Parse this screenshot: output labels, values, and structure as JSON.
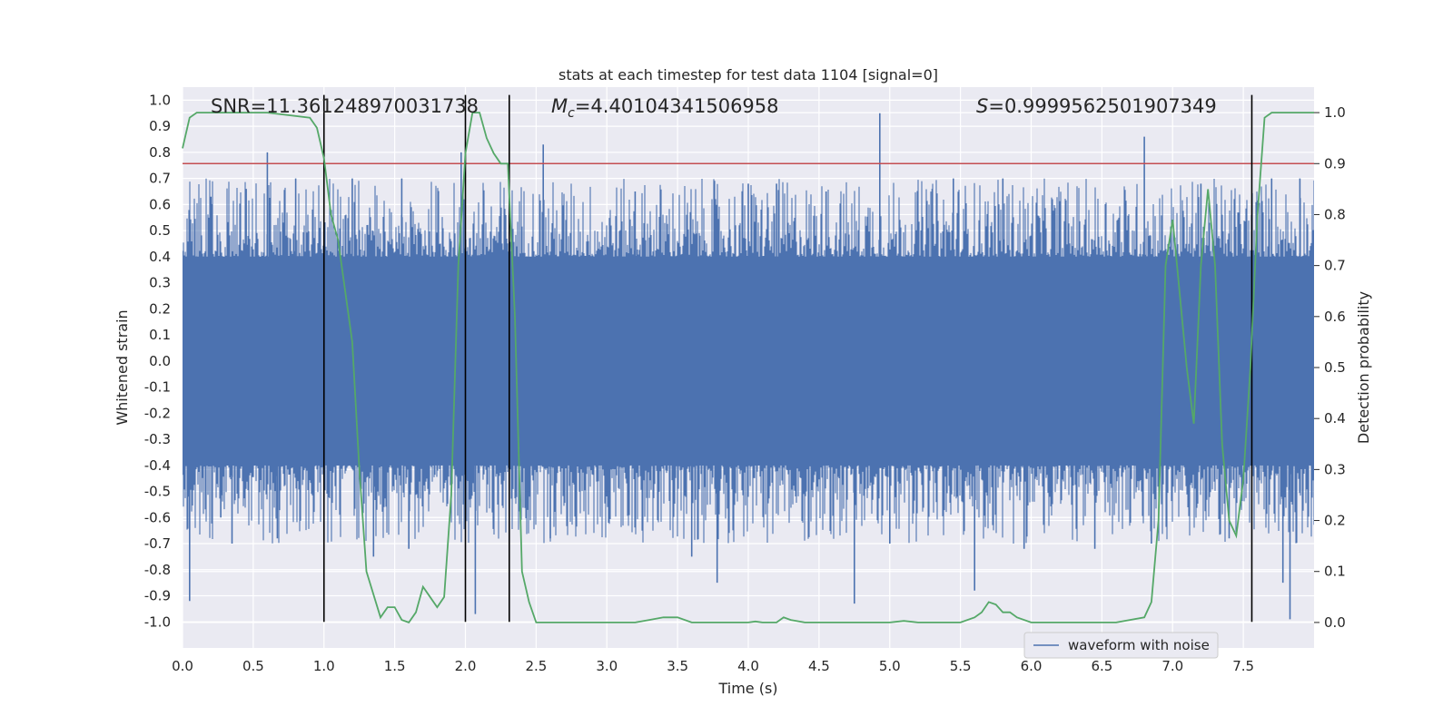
{
  "chart_data": {
    "type": "line",
    "title": "stats at each timestep for test data 1104 [signal=0]",
    "xlabel": "Time (s)",
    "ylabel_left": "Whitened strain",
    "ylabel_right": "Detection probability",
    "xlim": [
      0,
      8
    ],
    "ylim_left": [
      -1.1,
      1.05
    ],
    "ylim_right": [
      -0.05,
      1.05
    ],
    "grid": true,
    "background_color": "#eaeaf2",
    "x_ticks": [
      "0.0",
      "0.5",
      "1.0",
      "1.5",
      "2.0",
      "2.5",
      "3.0",
      "3.5",
      "4.0",
      "4.5",
      "5.0",
      "5.5",
      "6.0",
      "6.5",
      "7.0",
      "7.5"
    ],
    "y_left_ticks": [
      "1.0",
      "0.9",
      "0.8",
      "0.7",
      "0.6",
      "0.5",
      "0.4",
      "0.3",
      "0.2",
      "0.1",
      "0.0",
      "-0.1",
      "-0.2",
      "-0.3",
      "-0.4",
      "-0.5",
      "-0.6",
      "-0.7",
      "-0.8",
      "-0.9",
      "-1.0"
    ],
    "y_right_ticks": [
      "1.0",
      "0.9",
      "0.8",
      "0.7",
      "0.6",
      "0.5",
      "0.4",
      "0.3",
      "0.2",
      "0.1",
      "0.0"
    ],
    "annotations": {
      "snr": "SNR=11.361248970031738",
      "mc_symbol": "M",
      "mc_sub": "c",
      "mc_value": "=4.40104341506958",
      "s_symbol": "S",
      "s_value": "=0.9999562501907349"
    },
    "legend": {
      "entries": [
        {
          "name": "waveform with noise",
          "color": "#4c72b0"
        }
      ],
      "placement": "lower-right"
    },
    "series": [
      {
        "name": "waveform with noise",
        "axis": "left",
        "color": "#4c72b0",
        "kind": "noise-band",
        "core_band": [
          -0.4,
          0.4
        ],
        "spikes": [
          [
            0.05,
            -0.92
          ],
          [
            0.2,
            0.63
          ],
          [
            0.27,
            -0.6
          ],
          [
            0.35,
            -0.7
          ],
          [
            0.45,
            0.66
          ],
          [
            0.6,
            0.8
          ],
          [
            0.67,
            -0.68
          ],
          [
            0.8,
            0.7
          ],
          [
            1.2,
            0.7
          ],
          [
            1.35,
            -0.75
          ],
          [
            1.55,
            0.7
          ],
          [
            1.6,
            -0.72
          ],
          [
            1.97,
            0.8
          ],
          [
            2.07,
            -0.97
          ],
          [
            2.55,
            0.83
          ],
          [
            2.6,
            -0.68
          ],
          [
            3.2,
            0.65
          ],
          [
            3.6,
            -0.75
          ],
          [
            3.78,
            -0.85
          ],
          [
            4.0,
            0.68
          ],
          [
            4.2,
            0.68
          ],
          [
            4.55,
            0.65
          ],
          [
            4.75,
            -0.93
          ],
          [
            4.93,
            0.95
          ],
          [
            5.0,
            -0.7
          ],
          [
            5.3,
            0.66
          ],
          [
            5.45,
            0.7
          ],
          [
            5.6,
            -0.88
          ],
          [
            5.8,
            0.7
          ],
          [
            5.95,
            -0.72
          ],
          [
            6.45,
            -0.72
          ],
          [
            6.8,
            0.86
          ],
          [
            6.85,
            -0.7
          ],
          [
            7.2,
            0.68
          ],
          [
            7.4,
            -0.68
          ],
          [
            7.7,
            0.7
          ],
          [
            7.78,
            -0.85
          ],
          [
            7.83,
            -0.99
          ],
          [
            7.9,
            0.7
          ]
        ]
      },
      {
        "name": "detection-probability",
        "axis": "right",
        "color": "#55a868",
        "x": [
          0.0,
          0.05,
          0.1,
          0.3,
          0.6,
          0.9,
          0.95,
          1.0,
          1.05,
          1.1,
          1.2,
          1.25,
          1.3,
          1.4,
          1.45,
          1.5,
          1.55,
          1.6,
          1.65,
          1.7,
          1.75,
          1.8,
          1.85,
          1.9,
          1.95,
          2.0,
          2.05,
          2.1,
          2.15,
          2.2,
          2.25,
          2.3,
          2.35,
          2.4,
          2.45,
          2.5,
          2.6,
          3.0,
          3.2,
          3.3,
          3.4,
          3.5,
          3.6,
          3.8,
          4.0,
          4.05,
          4.1,
          4.2,
          4.25,
          4.3,
          4.4,
          4.5,
          4.6,
          4.8,
          5.0,
          5.1,
          5.2,
          5.4,
          5.5,
          5.6,
          5.65,
          5.7,
          5.75,
          5.8,
          5.85,
          5.9,
          6.0,
          6.1,
          6.3,
          6.6,
          6.8,
          6.85,
          6.9,
          6.95,
          7.0,
          7.1,
          7.15,
          7.2,
          7.25,
          7.3,
          7.35,
          7.4,
          7.45,
          7.5,
          7.55,
          7.6,
          7.65,
          7.7,
          8.0
        ],
        "values": [
          0.93,
          0.99,
          1.0,
          1.0,
          1.0,
          0.99,
          0.97,
          0.91,
          0.8,
          0.75,
          0.55,
          0.3,
          0.1,
          0.01,
          0.03,
          0.03,
          0.005,
          0.0,
          0.02,
          0.07,
          0.05,
          0.03,
          0.05,
          0.25,
          0.7,
          0.92,
          1.0,
          1.0,
          0.95,
          0.92,
          0.9,
          0.9,
          0.6,
          0.1,
          0.04,
          0.0,
          0.0,
          0.0,
          0.0,
          0.005,
          0.01,
          0.01,
          0.0,
          0.0,
          0.0,
          0.002,
          0.0,
          0.0,
          0.01,
          0.005,
          0.0,
          0.0,
          0.0,
          0.0,
          0.0,
          0.003,
          0.0,
          0.0,
          0.0,
          0.01,
          0.02,
          0.04,
          0.035,
          0.02,
          0.02,
          0.01,
          0.0,
          0.0,
          0.0,
          0.0,
          0.01,
          0.04,
          0.2,
          0.7,
          0.79,
          0.5,
          0.39,
          0.7,
          0.85,
          0.7,
          0.35,
          0.2,
          0.17,
          0.28,
          0.5,
          0.8,
          0.99,
          1.0,
          1.0
        ]
      },
      {
        "name": "threshold",
        "axis": "right",
        "color": "#c44e52",
        "kind": "hline",
        "value": 0.9
      }
    ],
    "vlines": [
      1.0,
      2.0,
      2.31,
      7.56
    ],
    "vline_range_left": [
      -1.0,
      1.02
    ]
  }
}
